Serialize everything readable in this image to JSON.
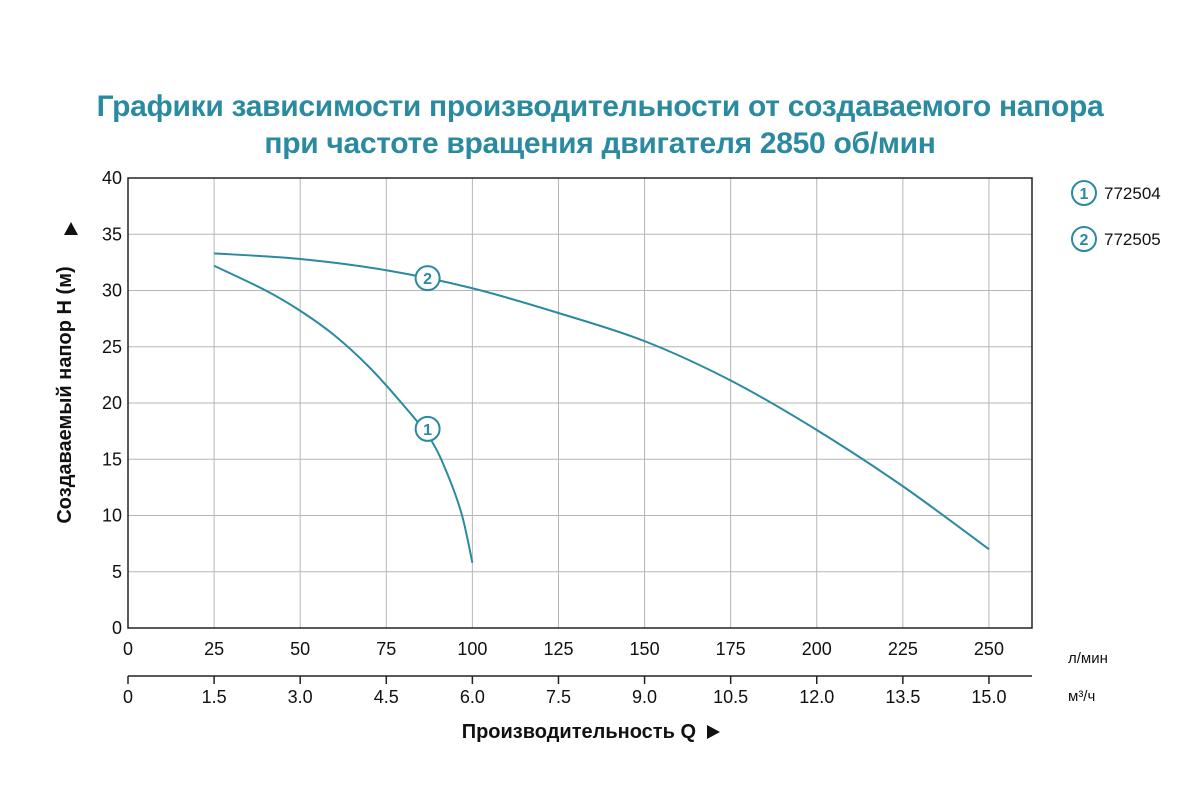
{
  "title": {
    "line1": "Графики зависимости производительности от создаваемого напора",
    "line2": "при частоте вращения двигателя 2850 об/мин"
  },
  "colors": {
    "accent": "#2a8aa0",
    "curve": "#2a8aa0",
    "grid": "#b5b5b5",
    "text": "#111111"
  },
  "chart_data": {
    "type": "line",
    "title": "Графики зависимости производительности от создаваемого напора при частоте вращения двигателя 2850 об/мин",
    "ylabel": "Создаваемый напор H (м)",
    "xlabel": "Производительность Q",
    "ylim": [
      0,
      40
    ],
    "xlim": [
      0,
      262.5
    ],
    "y_ticks": [
      "0",
      "5",
      "10",
      "15",
      "20",
      "25",
      "30",
      "35",
      "40"
    ],
    "x_ticks_primary": [
      "0",
      "25",
      "50",
      "75",
      "100",
      "125",
      "150",
      "175",
      "200",
      "225",
      "250"
    ],
    "x_unit_primary": "л/мин",
    "x_ticks_secondary": [
      "0",
      "1.5",
      "3.0",
      "4.5",
      "6.0",
      "7.5",
      "9.0",
      "10.5",
      "12.0",
      "13.5",
      "15.0"
    ],
    "x_unit_secondary": "м³/ч",
    "grid": true,
    "legend_position": "right",
    "series": [
      {
        "name": "772504",
        "marker_label": "1",
        "x": [
          25,
          40,
          50,
          60,
          70,
          80,
          88,
          93,
          97,
          100
        ],
        "y": [
          32.2,
          30.0,
          28.2,
          26.0,
          23.2,
          19.8,
          16.7,
          13.5,
          10.0,
          5.8
        ]
      },
      {
        "name": "772505",
        "marker_label": "2",
        "x": [
          25,
          50,
          75,
          100,
          125,
          150,
          175,
          200,
          225,
          250
        ],
        "y": [
          33.3,
          32.8,
          31.8,
          30.2,
          28.0,
          25.5,
          22.0,
          17.6,
          12.6,
          7.0
        ]
      }
    ],
    "markers": [
      {
        "label": "1",
        "x": 87,
        "y": 17.7
      },
      {
        "label": "2",
        "x": 87,
        "y": 31.1
      }
    ]
  }
}
